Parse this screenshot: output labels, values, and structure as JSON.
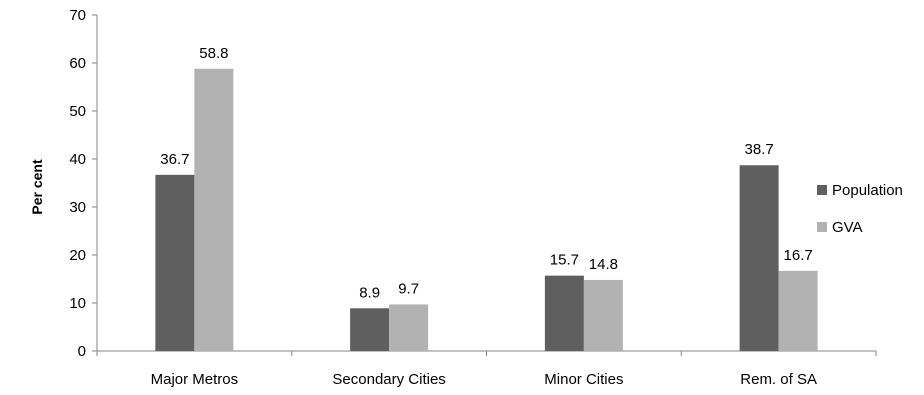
{
  "chart_data": {
    "type": "bar",
    "title": "",
    "xlabel": "",
    "ylabel": "Per cent",
    "ylim": [
      0,
      70
    ],
    "yticks": [
      0,
      10,
      20,
      30,
      40,
      50,
      60,
      70
    ],
    "grid": false,
    "legend_position": "right",
    "categories": [
      "Major Metros",
      "Secondary Cities",
      "Minor Cities",
      "Rem. of SA"
    ],
    "series": [
      {
        "name": "Population",
        "color": "#5f5f5f",
        "values": [
          36.7,
          8.9,
          15.7,
          38.7
        ],
        "labels": [
          "36.7",
          "8.9",
          "15.7",
          "38.7"
        ]
      },
      {
        "name": "GVA",
        "color": "#b2b2b2",
        "values": [
          58.8,
          9.7,
          14.8,
          16.7
        ],
        "labels": [
          "58.8",
          "9.7",
          "14.8",
          "16.7"
        ]
      }
    ]
  }
}
